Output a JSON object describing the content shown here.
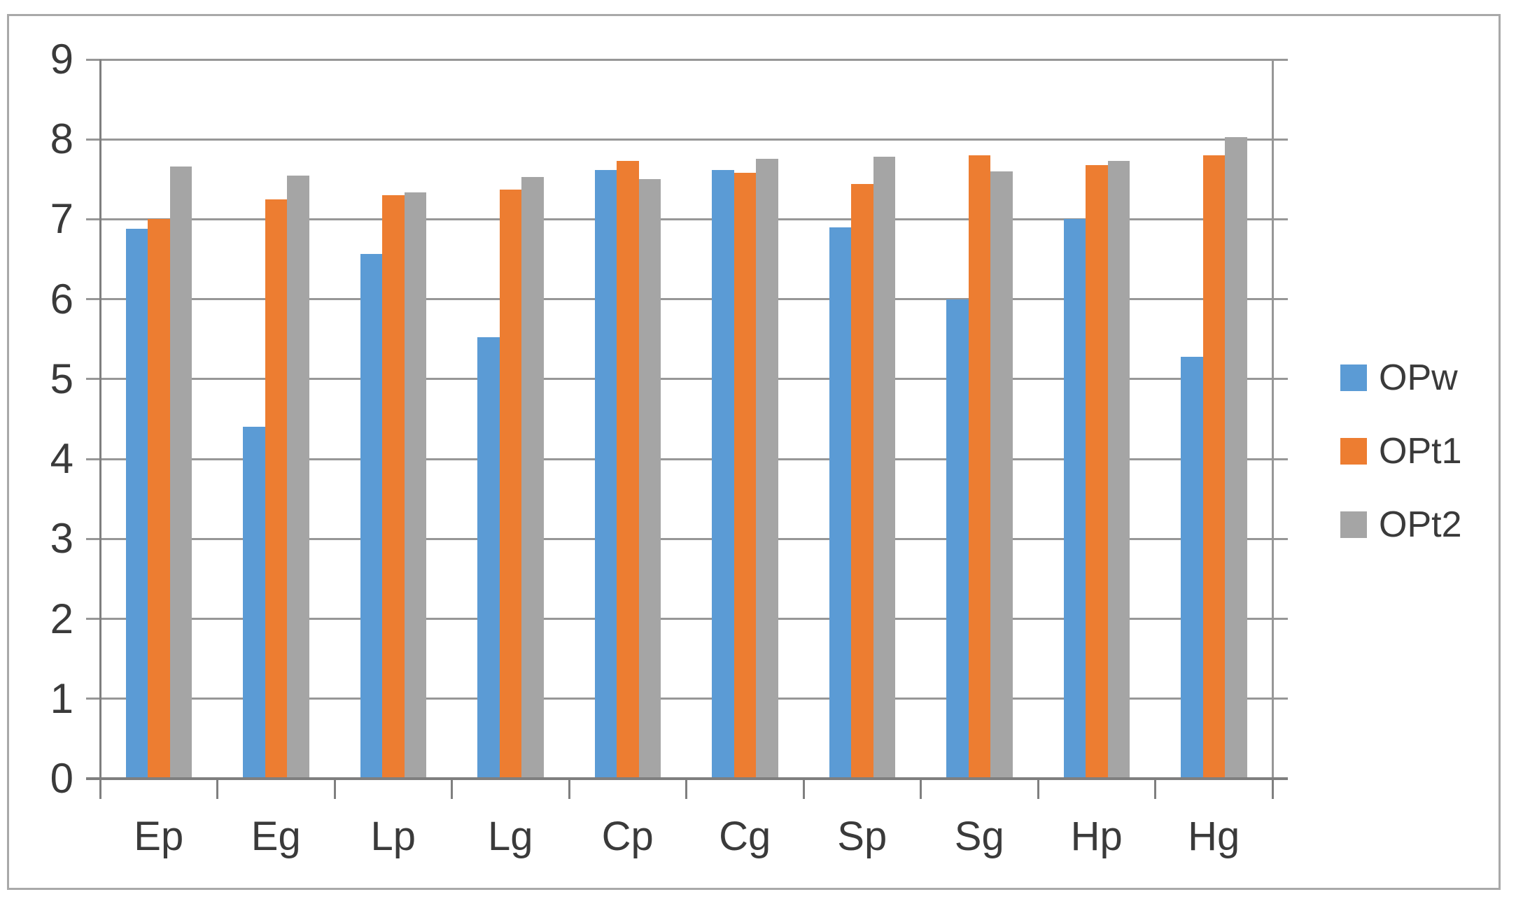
{
  "chart_data": {
    "type": "bar",
    "title": "",
    "xlabel": "",
    "ylabel": "",
    "categories": [
      "Ep",
      "Eg",
      "Lp",
      "Lg",
      "Cp",
      "Cg",
      "Sp",
      "Sg",
      "Hp",
      "Hg"
    ],
    "series": [
      {
        "name": "OPw",
        "color": "#5B9BD5",
        "values": [
          6.88,
          4.4,
          6.57,
          5.52,
          7.62,
          7.62,
          6.9,
          6.0,
          7.0,
          5.28
        ]
      },
      {
        "name": "OPt1",
        "color": "#ED7D31",
        "values": [
          7.0,
          7.25,
          7.3,
          7.37,
          7.73,
          7.58,
          7.44,
          7.8,
          7.68,
          7.8
        ]
      },
      {
        "name": "OPt2",
        "color": "#A5A5A5",
        "values": [
          7.66,
          7.55,
          7.34,
          7.53,
          7.5,
          7.76,
          7.78,
          7.6,
          7.73,
          8.03
        ]
      }
    ],
    "ylim": [
      0,
      9
    ],
    "ytick_step": 1,
    "yticks": [
      0,
      1,
      2,
      3,
      4,
      5,
      6,
      7,
      8,
      9
    ],
    "grid": true,
    "legend_position": "right-middle",
    "legend_entries": [
      "OPw",
      "OPt1",
      "OPt2"
    ]
  },
  "style": {
    "background": "#ffffff",
    "frame_color": "#a9a9a9",
    "grid_color": "#979797",
    "axis_color": "#7f7f7f",
    "text_color": "#3a3a3a"
  }
}
